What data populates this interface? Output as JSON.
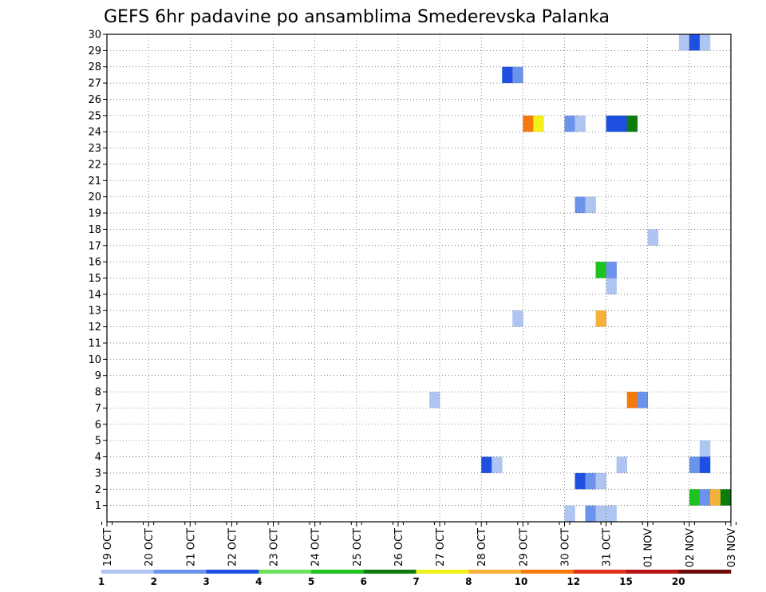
{
  "chart_data": {
    "type": "heatmap",
    "title": "GEFS 6hr padavine po ansamblima Smederevska Palanka",
    "xlabel": "",
    "ylabel": "",
    "x_tick_labels": [
      "19 OCT",
      "20 OCT",
      "21 OCT",
      "22 OCT",
      "23 OCT",
      "24 OCT",
      "25 OCT",
      "26 OCT",
      "27 OCT",
      "28 OCT",
      "29 OCT",
      "30 OCT",
      "31 OCT",
      "01 NOV",
      "02 NOV",
      "03 NOV"
    ],
    "y_tick_labels": [
      "1",
      "2",
      "3",
      "4",
      "5",
      "6",
      "7",
      "8",
      "9",
      "10",
      "11",
      "12",
      "13",
      "14",
      "15",
      "16",
      "17",
      "18",
      "19",
      "20",
      "21",
      "22",
      "23",
      "24",
      "25",
      "26",
      "27",
      "28",
      "29",
      "30"
    ],
    "ylim": [
      0,
      30
    ],
    "x_range_days": [
      0,
      15
    ],
    "time_step_hours": 6,
    "grid": true,
    "legend_position": "bottom",
    "legend": {
      "thresholds": [
        "1",
        "2",
        "3",
        "4",
        "5",
        "6",
        "7",
        "8",
        "10",
        "12",
        "15",
        "20"
      ],
      "colors": [
        "#aec5f2",
        "#6b93eb",
        "#1f4fe0",
        "#6be05a",
        "#1ec21e",
        "#0c7d0c",
        "#f2f21a",
        "#f5b23a",
        "#f57a0c",
        "#e0341a",
        "#b41414",
        "#6e0a0a"
      ]
    },
    "cells": [
      {
        "x": 13.75,
        "y": 30,
        "cat": 0
      },
      {
        "x": 14.0,
        "y": 30,
        "cat": 2
      },
      {
        "x": 14.25,
        "y": 30,
        "cat": 0
      },
      {
        "x": 9.5,
        "y": 28,
        "cat": 2
      },
      {
        "x": 9.75,
        "y": 28,
        "cat": 1
      },
      {
        "x": 10.0,
        "y": 25,
        "cat": 8
      },
      {
        "x": 10.25,
        "y": 25,
        "cat": 6
      },
      {
        "x": 11.0,
        "y": 25,
        "cat": 1
      },
      {
        "x": 11.25,
        "y": 25,
        "cat": 0
      },
      {
        "x": 12.0,
        "y": 25,
        "cat": 2
      },
      {
        "x": 12.25,
        "y": 25,
        "cat": 2
      },
      {
        "x": 12.5,
        "y": 25,
        "cat": 5
      },
      {
        "x": 11.25,
        "y": 20,
        "cat": 1
      },
      {
        "x": 11.5,
        "y": 20,
        "cat": 0
      },
      {
        "x": 13.0,
        "y": 18,
        "cat": 0
      },
      {
        "x": 11.75,
        "y": 16,
        "cat": 4
      },
      {
        "x": 12.0,
        "y": 16,
        "cat": 1
      },
      {
        "x": 12.0,
        "y": 15,
        "cat": 0
      },
      {
        "x": 9.75,
        "y": 13,
        "cat": 0
      },
      {
        "x": 11.75,
        "y": 13,
        "cat": 7
      },
      {
        "x": 7.75,
        "y": 8,
        "cat": 0
      },
      {
        "x": 12.5,
        "y": 8,
        "cat": 8
      },
      {
        "x": 12.75,
        "y": 8,
        "cat": 1
      },
      {
        "x": 14.25,
        "y": 5,
        "cat": 0
      },
      {
        "x": 9.0,
        "y": 4,
        "cat": 2
      },
      {
        "x": 9.25,
        "y": 4,
        "cat": 0
      },
      {
        "x": 12.25,
        "y": 4,
        "cat": 0
      },
      {
        "x": 14.0,
        "y": 4,
        "cat": 1
      },
      {
        "x": 14.25,
        "y": 4,
        "cat": 2
      },
      {
        "x": 11.25,
        "y": 3,
        "cat": 2
      },
      {
        "x": 11.5,
        "y": 3,
        "cat": 1
      },
      {
        "x": 11.75,
        "y": 3,
        "cat": 0
      },
      {
        "x": 14.0,
        "y": 2,
        "cat": 4
      },
      {
        "x": 14.25,
        "y": 2,
        "cat": 1
      },
      {
        "x": 14.5,
        "y": 2,
        "cat": 7
      },
      {
        "x": 14.75,
        "y": 2,
        "cat": 5
      },
      {
        "x": 11.0,
        "y": 1,
        "cat": 0
      },
      {
        "x": 11.5,
        "y": 1,
        "cat": 1
      },
      {
        "x": 11.75,
        "y": 1,
        "cat": 0
      },
      {
        "x": 12.0,
        "y": 1,
        "cat": 0
      }
    ]
  }
}
